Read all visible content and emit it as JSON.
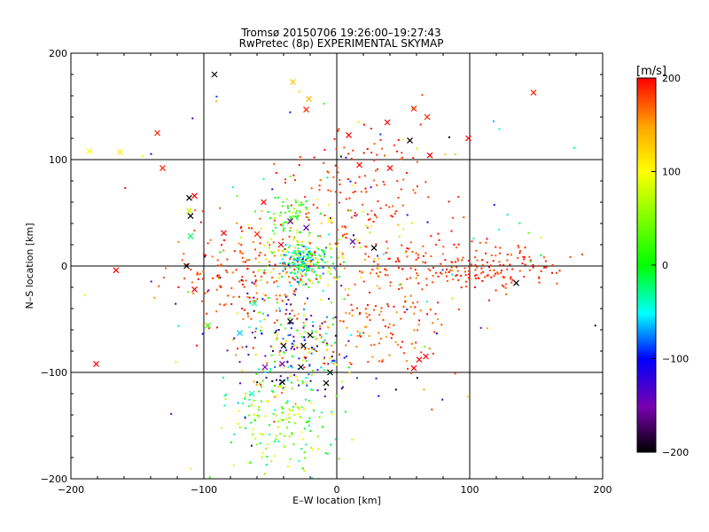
{
  "chart_data": {
    "type": "scatter",
    "title": "Tromsø 20150706 19:26:00–19:27:43",
    "subtitle": "RwPretec (8p) EXPERIMENTAL SKYMAP",
    "xlabel": "E–W location [km]",
    "ylabel": "N–S location [km]",
    "xlim": [
      -200,
      200
    ],
    "ylim": [
      -200,
      200
    ],
    "x_ticks": [
      "-200",
      "-100",
      "0",
      "100",
      "200"
    ],
    "y_ticks": [
      "-200",
      "-100",
      "0",
      "100",
      "200"
    ],
    "grid": true,
    "colorbar": {
      "label": "[m/s]",
      "range": [
        -200,
        200
      ],
      "ticks": [
        "-200",
        "-100",
        "0",
        "100",
        "200"
      ],
      "colors": [
        "#000000",
        "#7a00b0",
        "#0000ff",
        "#00ffff",
        "#00ff00",
        "#ffff00",
        "#ffa500",
        "#ff0000"
      ]
    },
    "series": [
      {
        "marker": "x",
        "points": [
          {
            "x": -92,
            "y": 180,
            "v": -200
          },
          {
            "x": -186,
            "y": 108,
            "v": 100
          },
          {
            "x": -163,
            "y": 107,
            "v": 110
          },
          {
            "x": -135,
            "y": 125,
            "v": 190
          },
          {
            "x": -131,
            "y": 92,
            "v": 190
          },
          {
            "x": -33,
            "y": 173,
            "v": 130
          },
          {
            "x": -21,
            "y": 157,
            "v": 140
          },
          {
            "x": -23,
            "y": 147,
            "v": 190
          },
          {
            "x": 9,
            "y": 123,
            "v": 200
          },
          {
            "x": 55,
            "y": 118,
            "v": -200
          },
          {
            "x": 68,
            "y": 140,
            "v": 190
          },
          {
            "x": 148,
            "y": 163,
            "v": 190
          },
          {
            "x": 99,
            "y": 120,
            "v": 200
          },
          {
            "x": -111,
            "y": 64,
            "v": -200
          },
          {
            "x": -111,
            "y": 52,
            "v": 80
          },
          {
            "x": -110,
            "y": 47,
            "v": -200
          },
          {
            "x": -107,
            "y": 66,
            "v": 200
          },
          {
            "x": -110,
            "y": 28,
            "v": -20
          },
          {
            "x": -166,
            "y": -4,
            "v": 200
          },
          {
            "x": -113,
            "y": 0,
            "v": -200
          },
          {
            "x": -107,
            "y": -22,
            "v": 200
          },
          {
            "x": -97,
            "y": -56,
            "v": 20
          },
          {
            "x": -181,
            "y": -92,
            "v": 200
          },
          {
            "x": -40,
            "y": -75,
            "v": -200
          },
          {
            "x": -35,
            "y": -52,
            "v": -200
          },
          {
            "x": -20,
            "y": -65,
            "v": -200
          },
          {
            "x": -25,
            "y": -75,
            "v": -200
          },
          {
            "x": -27,
            "y": -95,
            "v": -200
          },
          {
            "x": -41,
            "y": -92,
            "v": -140
          },
          {
            "x": -54,
            "y": -95,
            "v": -150
          },
          {
            "x": -41,
            "y": -109,
            "v": -200
          },
          {
            "x": -5,
            "y": -100,
            "v": -200
          },
          {
            "x": -8,
            "y": -110,
            "v": -200
          },
          {
            "x": 12,
            "y": 23,
            "v": -140
          },
          {
            "x": 28,
            "y": 17,
            "v": -200
          },
          {
            "x": -35,
            "y": 42,
            "v": -160
          },
          {
            "x": -23,
            "y": 36,
            "v": -140
          },
          {
            "x": -62,
            "y": -35,
            "v": -30
          },
          {
            "x": -64,
            "y": -120,
            "v": -40
          },
          {
            "x": -73,
            "y": -63,
            "v": -60
          },
          {
            "x": 62,
            "y": -88,
            "v": 200
          },
          {
            "x": 67,
            "y": -85,
            "v": 200
          },
          {
            "x": 58,
            "y": -96,
            "v": 200
          },
          {
            "x": 135,
            "y": -16,
            "v": -200
          },
          {
            "x": 38,
            "y": 135,
            "v": 200
          },
          {
            "x": 58,
            "y": 148,
            "v": 190
          },
          {
            "x": 70,
            "y": 104,
            "v": 200
          },
          {
            "x": 40,
            "y": 92,
            "v": 200
          },
          {
            "x": 17,
            "y": 95,
            "v": 200
          },
          {
            "x": -55,
            "y": 60,
            "v": 200
          },
          {
            "x": -60,
            "y": 30,
            "v": 190
          },
          {
            "x": -5,
            "y": 43,
            "v": 100
          },
          {
            "x": -42,
            "y": 20,
            "v": 200
          },
          {
            "x": -85,
            "y": 31,
            "v": 200
          }
        ]
      },
      {
        "marker": "dot",
        "generation": {
          "clusters": [
            {
              "name": "center",
              "cx": -25,
              "cy": 3,
              "sx": 11,
              "sy": 10,
              "n": 180,
              "vmin": -90,
              "vmax": 40
            },
            {
              "name": "center-ring",
              "cx": -18,
              "cy": 8,
              "sx": 28,
              "sy": 22,
              "n": 140,
              "vmin": 60,
              "vmax": 200
            },
            {
              "name": "north-green",
              "cx": -35,
              "cy": 48,
              "sx": 9,
              "sy": 9,
              "n": 55,
              "vmin": -20,
              "vmax": 60
            },
            {
              "name": "east-arm",
              "cx": 95,
              "cy": -2,
              "sx": 40,
              "sy": 12,
              "n": 210,
              "vmin": 170,
              "vmax": 200
            },
            {
              "name": "northeast",
              "cx": 15,
              "cy": 70,
              "sx": 30,
              "sy": 28,
              "n": 140,
              "vmin": 170,
              "vmax": 200
            },
            {
              "name": "south-mixed",
              "cx": -30,
              "cy": -75,
              "sx": 22,
              "sy": 30,
              "n": 230,
              "vmin": -200,
              "vmax": 200
            },
            {
              "name": "south-green",
              "cx": -45,
              "cy": -145,
              "sx": 22,
              "sy": 28,
              "n": 170,
              "vmin": -40,
              "vmax": 120
            },
            {
              "name": "west-red",
              "cx": -75,
              "cy": -5,
              "sx": 22,
              "sy": 25,
              "n": 150,
              "vmin": 160,
              "vmax": 200
            },
            {
              "name": "east-south",
              "cx": 35,
              "cy": -55,
              "sx": 25,
              "sy": 25,
              "n": 120,
              "vmin": 150,
              "vmax": 200
            },
            {
              "name": "scatter",
              "cx": 0,
              "cy": 0,
              "sx": 90,
              "sy": 90,
              "n": 120,
              "vmin": -200,
              "vmax": 200
            }
          ]
        }
      }
    ]
  }
}
